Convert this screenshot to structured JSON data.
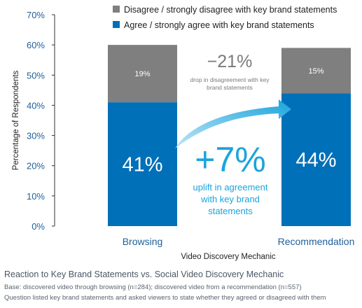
{
  "colors": {
    "agree": "#0070b8",
    "disagree": "#7f7f7f",
    "accent": "#1aa4dd",
    "tick": "#1f5f99"
  },
  "chart_data": {
    "type": "bar",
    "stacked": true,
    "categories": [
      "Browsing",
      "Recommendation"
    ],
    "series": [
      {
        "name": "Agree / strongly agree with key brand statements",
        "values": [
          41,
          44
        ]
      },
      {
        "name": "Disagree / strongly disagree with key brand statements",
        "values": [
          19,
          15
        ]
      }
    ],
    "bar_labels": {
      "agree": [
        "41%",
        "44%"
      ],
      "disagree": [
        "19%",
        "15%"
      ]
    },
    "ylim": [
      0,
      70
    ],
    "yticks": [
      "0%",
      "10%",
      "20%",
      "30%",
      "40%",
      "50%",
      "60%",
      "70%"
    ],
    "xlabel": "Video Discovery Mechanic",
    "ylabel": "Percentage of Respondents",
    "legend_position": "top",
    "grid": false,
    "annotations": {
      "disagree_change": "−21%",
      "disagree_change_text": [
        "drop in disagreement with key",
        "brand statements"
      ],
      "agree_change": "+7%",
      "agree_change_text": [
        "uplift in agreement",
        "with key brand",
        "statements"
      ]
    }
  },
  "footer": {
    "title": "Reaction to Key Brand Statements vs. Social Video Discovery Mechanic",
    "base": "Base: discovered video through browsing (n=284); discovered video from a recommendation (n=557)",
    "note": "Question listed key brand statements and asked viewers to state whether they agreed or disagreed with them"
  }
}
